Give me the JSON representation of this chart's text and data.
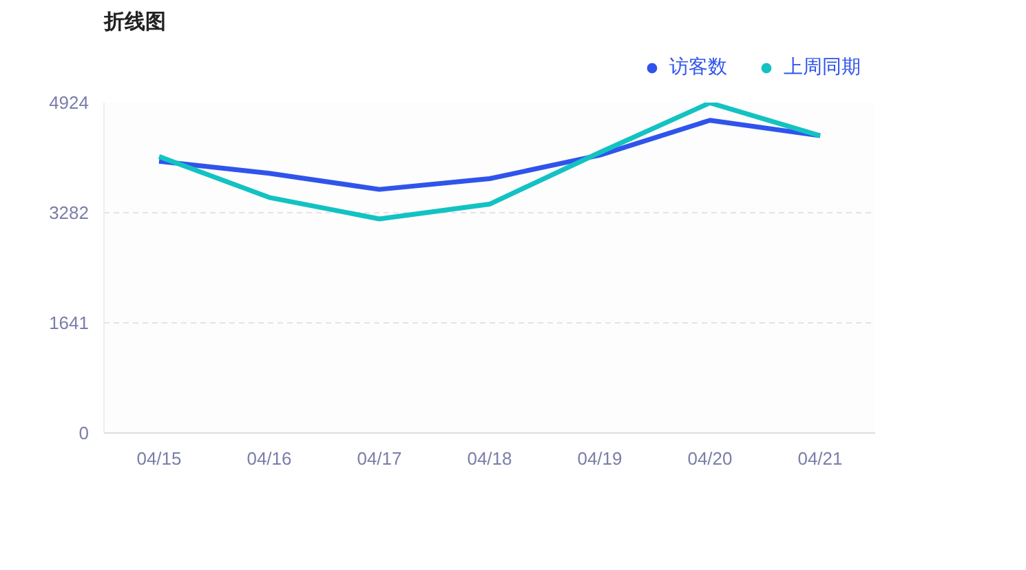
{
  "chart_data": {
    "type": "line",
    "title": "折线图",
    "categories": [
      "04/15",
      "04/16",
      "04/17",
      "04/18",
      "04/19",
      "04/20",
      "04/21"
    ],
    "series": [
      {
        "name": "访客数",
        "color": "#2f54eb",
        "values": [
          4050,
          3870,
          3630,
          3790,
          4140,
          4660,
          4430
        ]
      },
      {
        "name": "上周同期",
        "color": "#13c2c2",
        "values": [
          4120,
          3510,
          3190,
          3410,
          4180,
          4920,
          4430
        ]
      }
    ],
    "ylim": [
      0,
      4924
    ],
    "yticks": [
      0,
      1641,
      3282,
      4924
    ],
    "grid": "y",
    "legend": "top right",
    "marker": "none",
    "line_style": "solid"
  }
}
